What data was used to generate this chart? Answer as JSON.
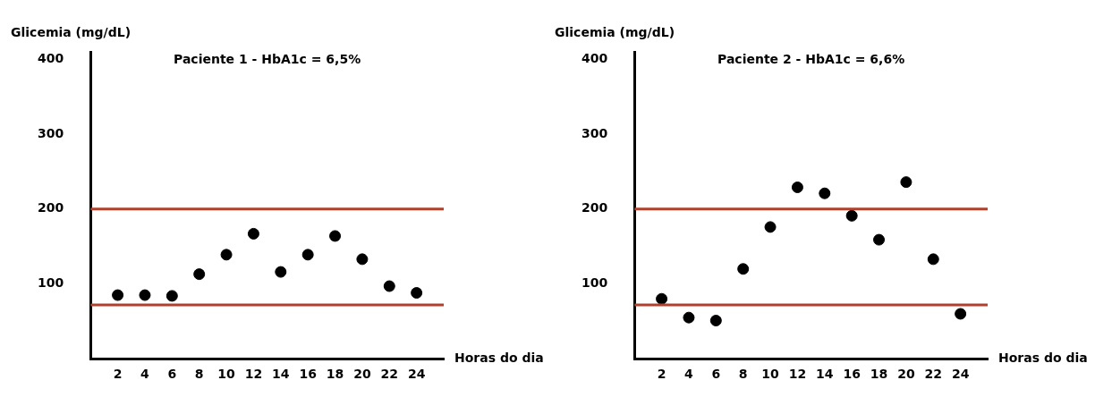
{
  "chart_data": [
    {
      "type": "scatter",
      "title": "Paciente 1 - HbA1c = 6,5%",
      "xlabel": "Horas do dia",
      "ylabel": "Glicemia (mg/dL)",
      "x": [
        2,
        4,
        6,
        8,
        10,
        12,
        14,
        16,
        18,
        20,
        22,
        24
      ],
      "xlim": [
        0,
        26
      ],
      "xticks": [
        2,
        4,
        6,
        8,
        10,
        12,
        14,
        16,
        18,
        20,
        22,
        24
      ],
      "ylim": [
        0,
        410
      ],
      "yticks": [
        100,
        200,
        300,
        400
      ],
      "grid": false,
      "legend": false,
      "marker": "circle",
      "series": [
        {
          "color": "#000000",
          "values": [
            85,
            85,
            84,
            113,
            139,
            167,
            116,
            139,
            164,
            133,
            97,
            88
          ]
        }
      ],
      "ref_lines": [
        {
          "axis": "y",
          "value": 200,
          "color": "#b0402c"
        },
        {
          "axis": "y",
          "value": 72,
          "color": "#b0402c"
        }
      ]
    },
    {
      "type": "scatter",
      "title": "Paciente 2 - HbA1c = 6,6%",
      "xlabel": "Horas do dia",
      "ylabel": "Glicemia (mg/dL)",
      "x": [
        2,
        4,
        6,
        8,
        10,
        12,
        14,
        16,
        18,
        20,
        22,
        24
      ],
      "xlim": [
        0,
        26
      ],
      "xticks": [
        2,
        4,
        6,
        8,
        10,
        12,
        14,
        16,
        18,
        20,
        22,
        24
      ],
      "ylim": [
        0,
        410
      ],
      "yticks": [
        100,
        200,
        300,
        400
      ],
      "grid": false,
      "legend": false,
      "marker": "circle",
      "series": [
        {
          "color": "#000000",
          "values": [
            80,
            55,
            51,
            120,
            176,
            229,
            221,
            191,
            159,
            236,
            133,
            60
          ]
        }
      ],
      "ref_lines": [
        {
          "axis": "y",
          "value": 200,
          "color": "#b0402c"
        },
        {
          "axis": "y",
          "value": 72,
          "color": "#b0402c"
        }
      ]
    }
  ]
}
